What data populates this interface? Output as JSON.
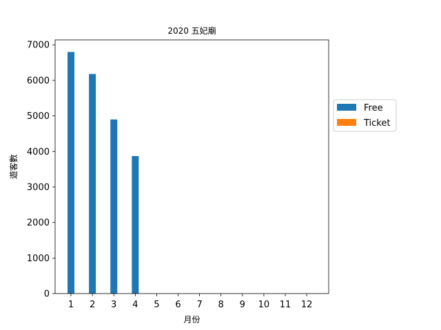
{
  "chart_data": {
    "type": "bar",
    "title": "2020 五妃廟",
    "xlabel": "月份",
    "ylabel": "遊客數",
    "categories": [
      "1",
      "2",
      "3",
      "4",
      "5",
      "6",
      "7",
      "8",
      "9",
      "10",
      "11",
      "12"
    ],
    "series": [
      {
        "name": "Free",
        "color": "#1f77b4",
        "values": [
          6800,
          6180,
          4900,
          3870,
          0,
          0,
          0,
          0,
          0,
          0,
          0,
          0
        ]
      },
      {
        "name": "Ticket",
        "color": "#ff7f0e",
        "values": [
          0,
          0,
          0,
          0,
          0,
          0,
          0,
          0,
          0,
          0,
          0,
          0
        ]
      }
    ],
    "ylim": [
      0,
      7140
    ],
    "yticks": [
      0,
      1000,
      2000,
      3000,
      4000,
      5000,
      6000,
      7000
    ],
    "grid": false,
    "legend_position": "outside-right"
  }
}
